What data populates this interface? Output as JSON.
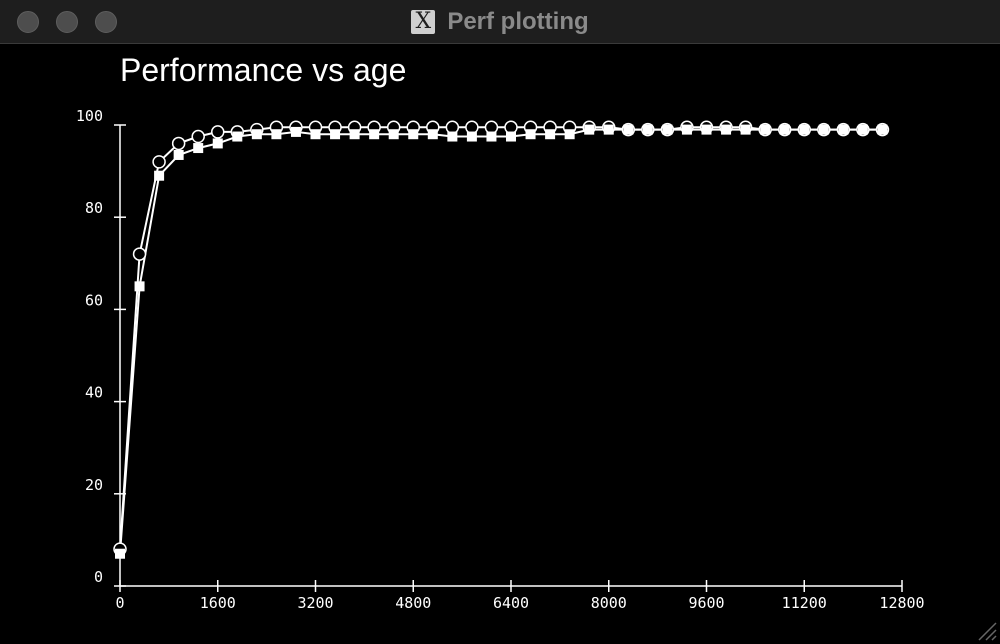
{
  "window": {
    "title": "Perf plotting",
    "icon": "x11-icon"
  },
  "chart_data": {
    "type": "line",
    "title": "Performance vs age",
    "xlabel": "",
    "ylabel": "",
    "xlim": [
      0,
      12800
    ],
    "ylim": [
      0,
      100
    ],
    "x_ticks": [
      0,
      1600,
      3200,
      4800,
      6400,
      8000,
      9600,
      11200,
      12800
    ],
    "y_ticks": [
      0,
      20,
      40,
      60,
      80,
      100
    ],
    "grid": false,
    "x": [
      0,
      320,
      640,
      960,
      1280,
      1600,
      1920,
      2240,
      2560,
      2880,
      3200,
      3520,
      3840,
      4160,
      4480,
      4800,
      5120,
      5440,
      5760,
      6080,
      6400,
      6720,
      7040,
      7360,
      7680,
      8000,
      8320,
      8640,
      8960,
      9280,
      9600,
      9920,
      10240,
      10560,
      10880,
      11200,
      11520,
      11840,
      12160,
      12480
    ],
    "series": [
      {
        "marker": "circle-open",
        "values": [
          8,
          72,
          92,
          96,
          97.5,
          98.5,
          98.5,
          99,
          99.5,
          99.5,
          99.5,
          99.5,
          99.5,
          99.5,
          99.5,
          99.5,
          99.5,
          99.5,
          99.5,
          99.5,
          99.5,
          99.5,
          99.5,
          99.5,
          99.5,
          99.5,
          99,
          99,
          99,
          99.5,
          99.5,
          99.5,
          99.5,
          99,
          99,
          99,
          99,
          99,
          99,
          99
        ]
      },
      {
        "marker": "square-filled",
        "values": [
          7,
          65,
          89,
          93.5,
          95,
          96,
          97.5,
          98,
          98,
          98.5,
          98,
          98,
          98,
          98,
          98,
          98,
          98,
          97.5,
          97.5,
          97.5,
          97.5,
          98,
          98,
          98,
          99,
          99,
          99,
          99,
          99,
          99,
          99,
          99,
          99,
          99,
          99,
          99,
          99,
          99,
          99,
          99
        ]
      }
    ]
  }
}
